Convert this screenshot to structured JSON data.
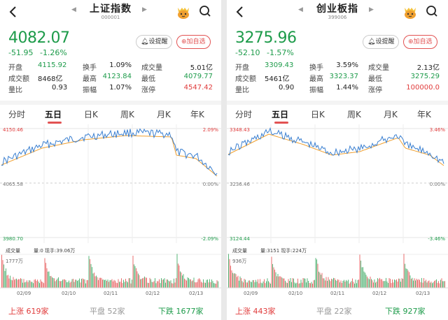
{
  "panels": [
    {
      "title": "上证指数",
      "code": "000001",
      "price": "4082.07",
      "change": "-51.95",
      "change_pct": "-1.26%",
      "alert_button": "设提醒",
      "add_button": "加自选",
      "stats": [
        [
          {
            "label": "开盘",
            "value": "4115.92",
            "color": "green"
          },
          {
            "label": "换手",
            "value": "1.09%",
            "color": "dark"
          },
          {
            "label": "成交量",
            "value": "5.01亿",
            "color": "dark"
          }
        ],
        [
          {
            "label": "成交额",
            "value": "8468亿",
            "color": "dark"
          },
          {
            "label": "最高",
            "value": "4123.84",
            "color": "green"
          },
          {
            "label": "最低",
            "value": "4079.77",
            "color": "green"
          }
        ],
        [
          {
            "label": "量比",
            "value": "0.93",
            "color": "dark"
          },
          {
            "label": "振幅",
            "value": "1.07%",
            "color": "dark"
          },
          {
            "label": "涨停",
            "value": "4547.42",
            "color": "red"
          }
        ]
      ],
      "tabs": [
        "分时",
        "五日",
        "日K",
        "周K",
        "月K",
        "年K"
      ],
      "active_tab": "五日",
      "chart": {
        "y_top": "4150.46",
        "y_mid": "4065.58",
        "y_bot": "3980.70",
        "pct_top": "2.09%",
        "pct_mid": "0.00%",
        "pct_bot": "-2.09%"
      },
      "volume": {
        "label": "成交量",
        "info": "量:0 现手:39.06万",
        "max": "1777万",
        "dates": [
          "02/09",
          "02/10",
          "02/11",
          "02/12",
          "02/13"
        ]
      },
      "footer": {
        "up_label": "上涨",
        "up_value": "619家",
        "flat_label": "平盘",
        "flat_value": "52家",
        "down_label": "下跌",
        "down_value": "1677家"
      }
    },
    {
      "title": "创业板指",
      "code": "399006",
      "price": "3275.96",
      "change": "-52.10",
      "change_pct": "-1.57%",
      "alert_button": "设提醒",
      "add_button": "加自选",
      "stats": [
        [
          {
            "label": "开盘",
            "value": "3309.43",
            "color": "green"
          },
          {
            "label": "换手",
            "value": "3.59%",
            "color": "dark"
          },
          {
            "label": "成交量",
            "value": "2.13亿",
            "color": "dark"
          }
        ],
        [
          {
            "label": "成交额",
            "value": "5461亿",
            "color": "dark"
          },
          {
            "label": "最高",
            "value": "3323.37",
            "color": "green"
          },
          {
            "label": "最低",
            "value": "3275.29",
            "color": "green"
          }
        ],
        [
          {
            "label": "量比",
            "value": "0.90",
            "color": "dark"
          },
          {
            "label": "振幅",
            "value": "1.44%",
            "color": "dark"
          },
          {
            "label": "涨停",
            "value": "100000.0",
            "color": "red"
          }
        ]
      ],
      "tabs": [
        "分时",
        "五日",
        "日K",
        "周K",
        "月K",
        "年K"
      ],
      "active_tab": "五日",
      "chart": {
        "y_top": "3348.43",
        "y_mid": "3236.46",
        "y_bot": "3124.44",
        "pct_top": "3.46%",
        "pct_mid": "0.00%",
        "pct_bot": "-3.46%"
      },
      "volume": {
        "label": "成交量",
        "info": "量:3151 现手:224万",
        "max": "936万",
        "dates": [
          "02/09",
          "02/10",
          "02/11",
          "02/12",
          "02/13"
        ]
      },
      "footer": {
        "up_label": "上涨",
        "up_value": "443家",
        "flat_label": "平盘",
        "flat_value": "22家",
        "down_label": "下跌",
        "down_value": "927家"
      }
    }
  ],
  "colors": {
    "up": "#e03b3b",
    "down": "#1d9b4a",
    "price_line": "#3a7fd0",
    "avg_line": "#f0a030",
    "flat": "#999999"
  }
}
